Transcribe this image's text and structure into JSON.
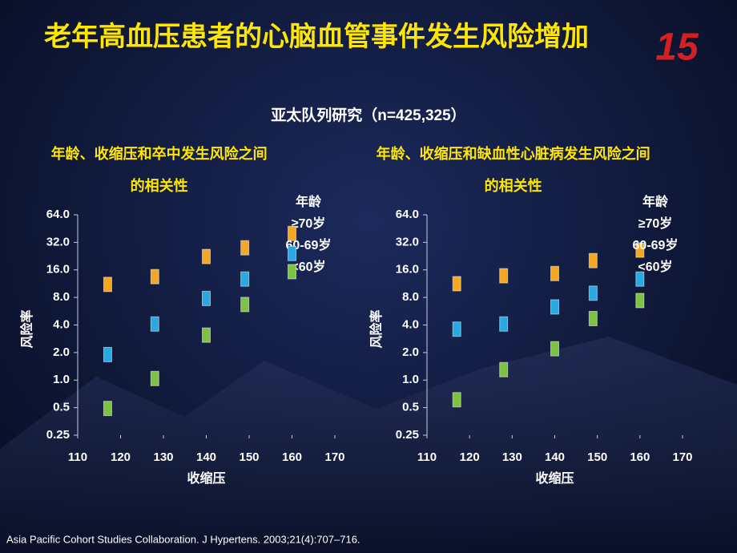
{
  "slide": {
    "title": "老年高血压患者的心脑血管事件发生风险增加",
    "subtitle": "亚太队列研究（n=425,325）",
    "citation": "Asia Pacific Cohort Studies Collaboration. J Hypertens. 2003;21(4):707–716.",
    "logo": "15"
  },
  "chart_data": [
    {
      "type": "line",
      "title": "年龄、收缩压和卒中发生风险之间的相关性",
      "x_label": "收缩压",
      "y_label": "风险率",
      "legend_title": "年龄",
      "log_y": true,
      "xlim": [
        110,
        170
      ],
      "xticks": [
        110,
        120,
        130,
        140,
        150,
        160,
        170
      ],
      "ylim": [
        0.25,
        64
      ],
      "yticks": [
        0.25,
        0.5,
        {
          "value": 1,
          "label": "1.0"
        },
        {
          "value": 2,
          "label": "2.0"
        },
        {
          "value": 4,
          "label": "4.0"
        },
        {
          "value": 8,
          "label": "8.0"
        },
        {
          "value": 16,
          "label": "16.0"
        },
        {
          "value": 32,
          "label": "32.0"
        },
        {
          "value": 64,
          "label": "64.0"
        }
      ],
      "x": [
        117,
        128,
        140,
        149,
        160
      ],
      "series": [
        {
          "name": "≥70岁",
          "color": "#f5a623",
          "values": [
            11.1,
            13.5,
            22.4,
            27.9,
            40
          ]
        },
        {
          "name": "60-69岁",
          "color": "#2aa8e0",
          "values": [
            1.9,
            4.1,
            7.8,
            12.7,
            24.2
          ]
        },
        {
          "name": "<60岁",
          "color": "#7dc242",
          "values": [
            0.49,
            1.04,
            3.1,
            6.7,
            15.3
          ]
        }
      ]
    },
    {
      "type": "line",
      "title": "年龄、收缩压和缺血性心脏病发生风险之间的相关性",
      "x_label": "收缩压",
      "y_label": "风险率",
      "legend_title": "年龄",
      "log_y": true,
      "xlim": [
        110,
        170
      ],
      "xticks": [
        110,
        120,
        130,
        140,
        150,
        160,
        170
      ],
      "ylim": [
        0.25,
        64
      ],
      "yticks": [
        0.25,
        0.5,
        {
          "value": 1,
          "label": "1.0"
        },
        {
          "value": 2,
          "label": "2.0"
        },
        {
          "value": 4,
          "label": "4.0"
        },
        {
          "value": 8,
          "label": "8.0"
        },
        {
          "value": 16,
          "label": "16.0"
        },
        {
          "value": 32,
          "label": "32.0"
        },
        {
          "value": 64,
          "label": "64.0"
        }
      ],
      "x": [
        117,
        128,
        140,
        149,
        160
      ],
      "series": [
        {
          "name": "≥70岁",
          "color": "#f5a623",
          "values": [
            11.3,
            13.8,
            14.6,
            20.2,
            26.3
          ]
        },
        {
          "name": "60-69岁",
          "color": "#2aa8e0",
          "values": [
            3.6,
            4.1,
            6.3,
            8.9,
            12.7
          ]
        },
        {
          "name": "<60岁",
          "color": "#7dc242",
          "values": [
            0.61,
            1.3,
            2.2,
            4.7,
            7.4
          ]
        }
      ]
    }
  ]
}
